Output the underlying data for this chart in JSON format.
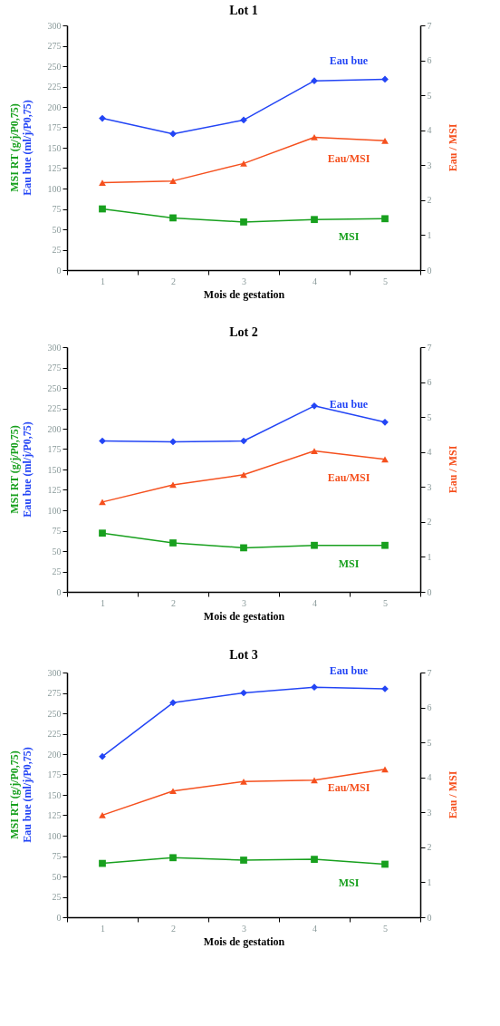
{
  "chart_data": [
    {
      "type": "line",
      "title": "Lot 1",
      "xlabel": "Mois de gestation",
      "ylabel": "MSI RT (g/j/P0,75)\nEau bue (ml/j/P0,75)",
      "y2label": "Eau / MSI",
      "categories": [
        "1",
        "2",
        "3",
        "4",
        "5"
      ],
      "ylim": [
        0,
        300
      ],
      "yticks": [
        0,
        25,
        50,
        75,
        100,
        125,
        150,
        175,
        200,
        225,
        250,
        275,
        300
      ],
      "y2lim": [
        0,
        7
      ],
      "y2ticks": [
        0,
        1,
        2,
        3,
        4,
        5,
        6,
        7
      ],
      "grid": false,
      "line_style": "solid",
      "series": [
        {
          "name": "Eau bue",
          "color": "#2345f5",
          "marker": "diamond",
          "values": [
            186,
            167,
            184,
            232,
            234
          ]
        },
        {
          "name": "Eau/MSI",
          "color": "#f5501e",
          "marker": "triangle",
          "axis": "y2",
          "values": [
            2.5,
            2.55,
            3.05,
            3.8,
            3.7
          ]
        },
        {
          "name": "MSI",
          "color": "#18a01e",
          "marker": "square",
          "values": [
            75,
            64,
            59,
            62,
            63
          ]
        }
      ]
    },
    {
      "type": "line",
      "title": "Lot 2",
      "xlabel": "Mois de gestation",
      "ylabel": "MSI RT (g/j/P0,75)\nEau bue (ml/j/P0,75)",
      "y2label": "Eau / MSI",
      "categories": [
        "1",
        "2",
        "3",
        "4",
        "5"
      ],
      "ylim": [
        0,
        300
      ],
      "yticks": [
        0,
        25,
        50,
        75,
        100,
        125,
        150,
        175,
        200,
        225,
        250,
        275,
        300
      ],
      "y2lim": [
        0,
        7
      ],
      "y2ticks": [
        0,
        1,
        2,
        3,
        4,
        5,
        6,
        7
      ],
      "grid": false,
      "line_style": "solid",
      "series": [
        {
          "name": "Eau bue",
          "color": "#2345f5",
          "marker": "diamond",
          "values": [
            185,
            184,
            185,
            228,
            208
          ]
        },
        {
          "name": "Eau/MSI",
          "color": "#f5501e",
          "marker": "triangle",
          "axis": "y2",
          "values": [
            2.57,
            3.06,
            3.35,
            4.03,
            3.79
          ]
        },
        {
          "name": "MSI",
          "color": "#18a01e",
          "marker": "square",
          "values": [
            72,
            60,
            54,
            57,
            57
          ]
        }
      ]
    },
    {
      "type": "line",
      "title": "Lot 3",
      "xlabel": "Mois de gestation",
      "ylabel": "MSI RT (g/j/P0,75)\nEau bue (ml/j/P0,75)",
      "y2label": "Eau / MSI",
      "categories": [
        "1",
        "2",
        "3",
        "4",
        "5"
      ],
      "ylim": [
        0,
        300
      ],
      "yticks": [
        0,
        25,
        50,
        75,
        100,
        125,
        150,
        175,
        200,
        225,
        250,
        275,
        300
      ],
      "y2lim": [
        0,
        7
      ],
      "y2ticks": [
        0,
        1,
        2,
        3,
        4,
        5,
        6,
        7
      ],
      "grid": false,
      "line_style": "solid",
      "series": [
        {
          "name": "Eau bue",
          "color": "#2345f5",
          "marker": "diamond",
          "values": [
            197,
            263,
            275,
            282,
            280
          ]
        },
        {
          "name": "Eau/MSI",
          "color": "#f5501e",
          "marker": "triangle",
          "axis": "y2",
          "values": [
            2.92,
            3.61,
            3.88,
            3.92,
            4.23
          ]
        },
        {
          "name": "MSI",
          "color": "#18a01e",
          "marker": "square",
          "values": [
            66,
            73,
            70,
            71,
            65
          ]
        }
      ]
    }
  ]
}
